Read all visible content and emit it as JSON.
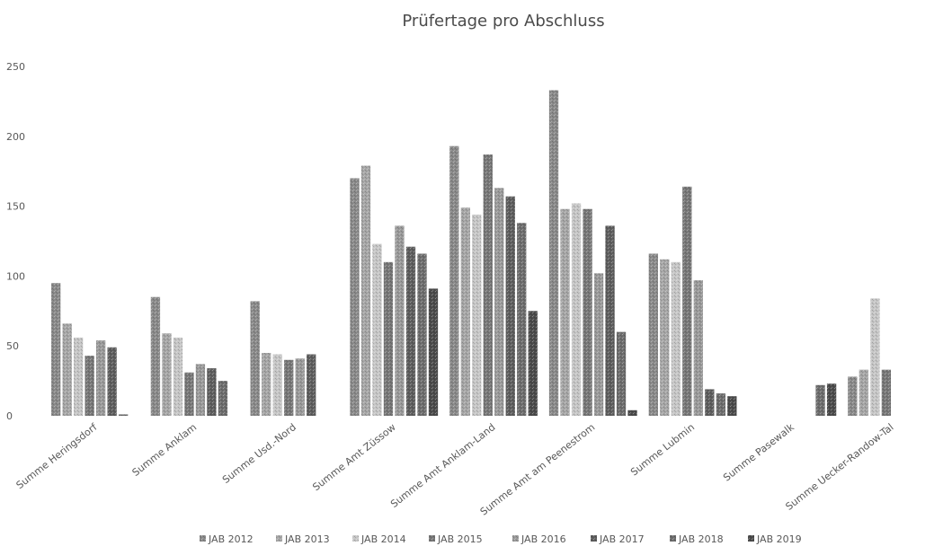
{
  "chart_data": {
    "type": "bar",
    "title": "Prüfertage pro Abschluss",
    "xlabel": "",
    "ylabel": "",
    "ylim": [
      0,
      250
    ],
    "yticks": [
      0,
      50,
      100,
      150,
      200,
      250
    ],
    "grid": false,
    "legend_position": "bottom",
    "categories": [
      "Summe Heringsdorf",
      "Summe Anklam",
      "Summe Usd.-Nord",
      "Summe Amt Züssow",
      "Summe Amt Anklam-Land",
      "Summe Amt am Peenestrom",
      "Summe Lubmin",
      "Summe Pasewalk",
      "Summe Uecker-Randow-Tal"
    ],
    "series": [
      {
        "name": "JAB 2012",
        "color": "#8a8a8a",
        "values": [
          95,
          85,
          82,
          170,
          193,
          233,
          116,
          null,
          28
        ]
      },
      {
        "name": "JAB 2013",
        "color": "#a6a6a6",
        "values": [
          66,
          59,
          45,
          179,
          149,
          148,
          112,
          null,
          33
        ]
      },
      {
        "name": "JAB 2014",
        "color": "#c6c6c6",
        "values": [
          56,
          56,
          44,
          123,
          144,
          152,
          110,
          null,
          84
        ]
      },
      {
        "name": "JAB 2015",
        "color": "#787878",
        "values": [
          43,
          31,
          40,
          110,
          187,
          148,
          164,
          null,
          33
        ]
      },
      {
        "name": "JAB 2016",
        "color": "#9a9a9a",
        "values": [
          54,
          37,
          41,
          136,
          163,
          102,
          97,
          null,
          null
        ]
      },
      {
        "name": "JAB 2017",
        "color": "#5f5f5f",
        "values": [
          49,
          34,
          44,
          121,
          157,
          136,
          19,
          null,
          null
        ]
      },
      {
        "name": "JAB 2018",
        "color": "#6e6e6e",
        "values": [
          1,
          25,
          null,
          116,
          138,
          60,
          16,
          22,
          null
        ]
      },
      {
        "name": "JAB 2019",
        "color": "#4c4c4c",
        "values": [
          null,
          null,
          null,
          91,
          75,
          4,
          14,
          23,
          null
        ]
      }
    ]
  }
}
